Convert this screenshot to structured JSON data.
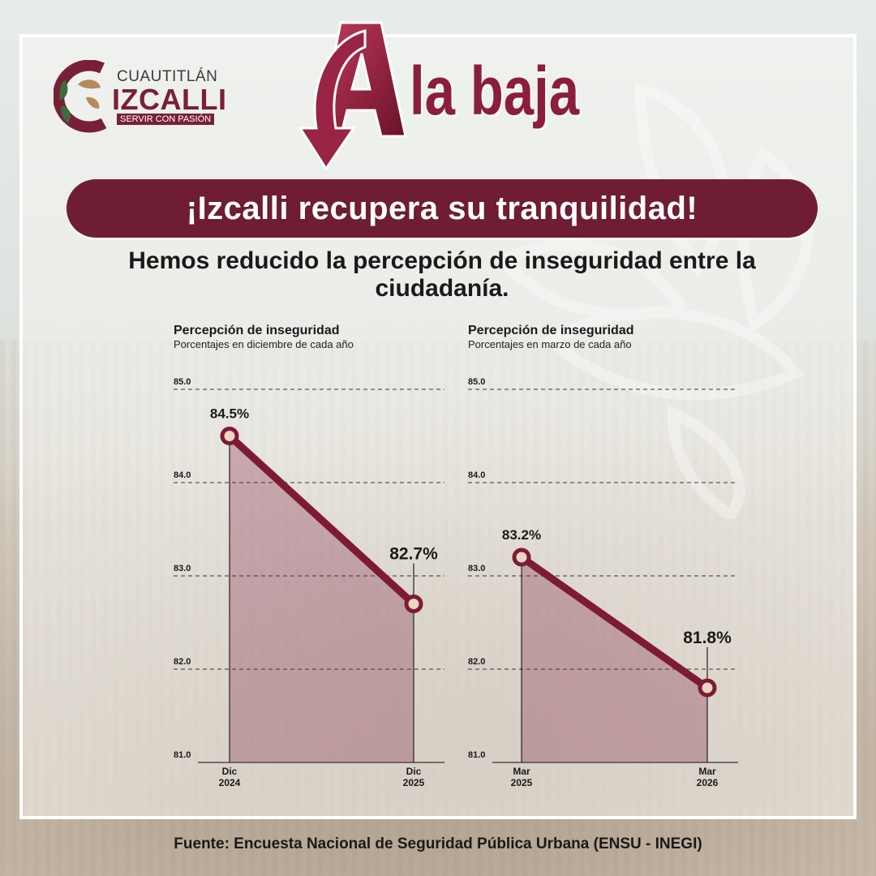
{
  "logo": {
    "line1": "CUAUTITLÁN",
    "line2": "IZCALLI",
    "line3": "SERVIR CON PASIÓN"
  },
  "headline": {
    "letter": "A",
    "rest": "la baja"
  },
  "banner": "¡Izcalli recupera su tranquilidad!",
  "subtitle": "Hemos reducido la percepción de inseguridad entre la ciudadanía.",
  "footer": "Fuente: Encuesta Nacional de Seguridad Pública Urbana (ENSU - INEGI)",
  "colors": {
    "maroon": "#6e1d33",
    "line": "#7d1b34",
    "fill": "rgba(130,40,70,0.32)"
  },
  "chart_data": [
    {
      "type": "area",
      "title": "Percepción de inseguridad",
      "subtitle": "Porcentajes en diciembre de cada año",
      "categories": [
        "Dic\n2024",
        "Dic\n2025"
      ],
      "values": [
        84.5,
        82.7
      ],
      "data_labels": [
        "84.5%",
        "82.7%"
      ],
      "ylim": [
        81.0,
        85.0
      ],
      "yticks": [
        "81.0",
        "82.0",
        "83.0",
        "84.0",
        "85.0"
      ],
      "grid": true
    },
    {
      "type": "area",
      "title": "Percepción de inseguridad",
      "subtitle": "Porcentajes en marzo de cada año",
      "categories": [
        "Mar\n2025",
        "Mar\n2026"
      ],
      "values": [
        83.2,
        81.8
      ],
      "data_labels": [
        "83.2%",
        "81.8%"
      ],
      "ylim": [
        81.0,
        85.0
      ],
      "yticks": [
        "81.0",
        "82.0",
        "83.0",
        "84.0",
        "85.0"
      ],
      "grid": true
    }
  ]
}
